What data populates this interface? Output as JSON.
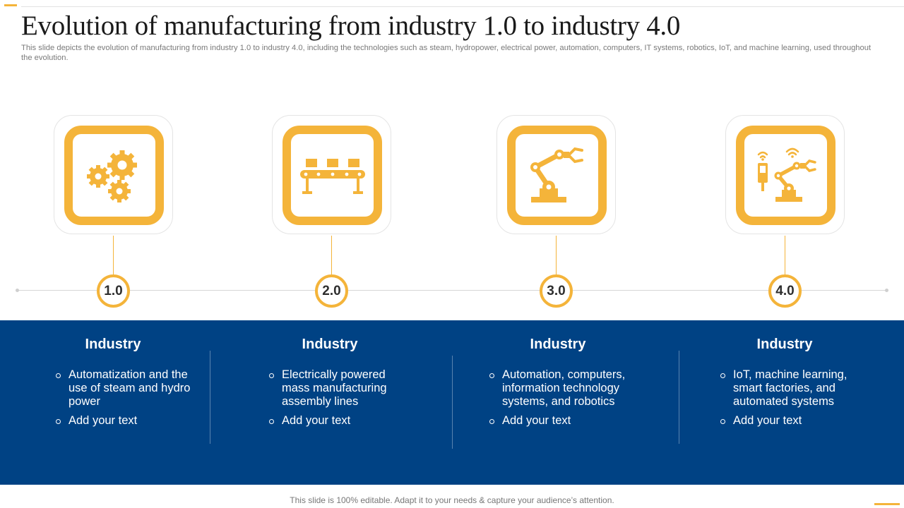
{
  "slide": {
    "title": "Evolution of manufacturing from industry 1.0 to industry 4.0",
    "subtitle": "This slide depicts the evolution of manufacturing from industry 1.0 to industry 4.0, including the technologies such as steam, hydropower, electrical power, automation, computers, IT systems, robotics, IoT, and machine learning, used throughout the evolution.",
    "footer": "This slide is 100% editable. Adapt it to your needs & capture your audience’s attention."
  },
  "colors": {
    "accent": "#F4B43A",
    "panel": "#004284",
    "text_on_panel": "#FFFFFF"
  },
  "stages": [
    {
      "icon": "gears-icon",
      "badge": "1.0",
      "title": "Industry",
      "bullets": [
        "Automatization and the use of steam and hydro power",
        "Add your text"
      ]
    },
    {
      "icon": "conveyor-belt-icon",
      "badge": "2.0",
      "title": "Industry",
      "bullets": [
        "Electrically powered mass manufacturing assembly lines",
        "Add your text"
      ]
    },
    {
      "icon": "robotic-arm-icon",
      "badge": "3.0",
      "title": "Industry",
      "bullets": [
        "Automation, computers, information technology systems, and robotics",
        "Add your text"
      ]
    },
    {
      "icon": "smart-robot-iot-icon",
      "badge": "4.0",
      "title": "Industry",
      "bullets": [
        "IoT, machine learning, smart factories, and automated systems",
        "Add your text"
      ]
    }
  ]
}
